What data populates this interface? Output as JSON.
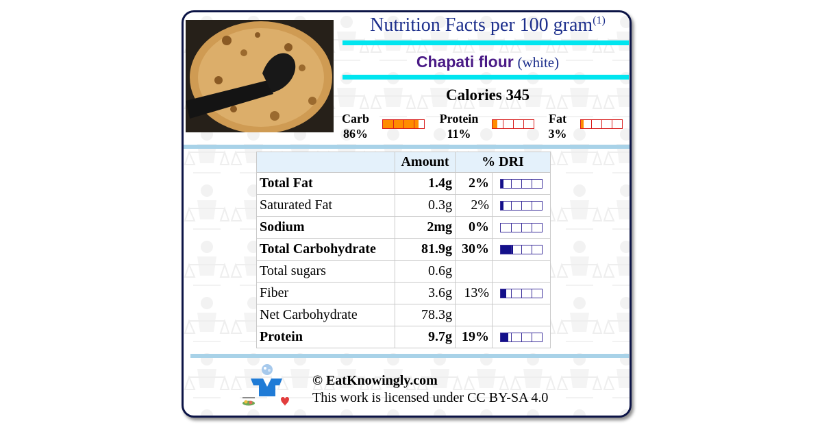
{
  "header": {
    "title": "Nutrition Facts per 100 gram",
    "title_note": "(1)",
    "food_name": "Chapati flour",
    "food_descriptor": "(white)"
  },
  "calories": "Calories 345",
  "macros": [
    {
      "name": "Carb",
      "percent": "86%",
      "fraction": 0.86
    },
    {
      "name": "Protein",
      "percent": "11%",
      "fraction": 0.11
    },
    {
      "name": "Fat",
      "percent": "3%",
      "fraction": 0.03
    }
  ],
  "table": {
    "headers": {
      "name": "",
      "amount": "Amount",
      "dri": "% DRI"
    },
    "rows": [
      {
        "name": "Total Fat",
        "amount": "1.4g",
        "dri": "2%",
        "fraction": 0.02,
        "bold": true,
        "sub": false
      },
      {
        "name": "Saturated Fat",
        "amount": "0.3g",
        "dri": "2%",
        "fraction": 0.02,
        "bold": false,
        "sub": true
      },
      {
        "name": "Sodium",
        "amount": "2mg",
        "dri": "0%",
        "fraction": 0.0,
        "bold": true,
        "sub": false
      },
      {
        "name": "Total Carbohydrate",
        "amount": "81.9g",
        "dri": "30%",
        "fraction": 0.3,
        "bold": true,
        "sub": false
      },
      {
        "name": "Total sugars",
        "amount": "0.6g",
        "dri": "",
        "fraction": null,
        "bold": false,
        "sub": true
      },
      {
        "name": "Fiber",
        "amount": "3.6g",
        "dri": "13%",
        "fraction": 0.13,
        "bold": false,
        "sub": true
      },
      {
        "name": "Net Carbohydrate",
        "amount": "78.3g",
        "dri": "",
        "fraction": null,
        "bold": false,
        "sub": true
      },
      {
        "name": "Protein",
        "amount": "9.7g",
        "dri": "19%",
        "fraction": 0.19,
        "bold": true,
        "sub": false
      }
    ]
  },
  "footer": {
    "copyright": "© EatKnowingly.com",
    "license": "This work is licensed under CC BY-SA 4.0"
  },
  "colors": {
    "title": "#1d2f8c",
    "food_name": "#4a1a86",
    "cyan_rule": "#00e5ef",
    "separator": "#a8d2e8",
    "macro_fill": "#ff8c00",
    "macro_border": "#d81e1e",
    "dri_fill": "#13108a",
    "dri_border": "#3b2e9a"
  }
}
